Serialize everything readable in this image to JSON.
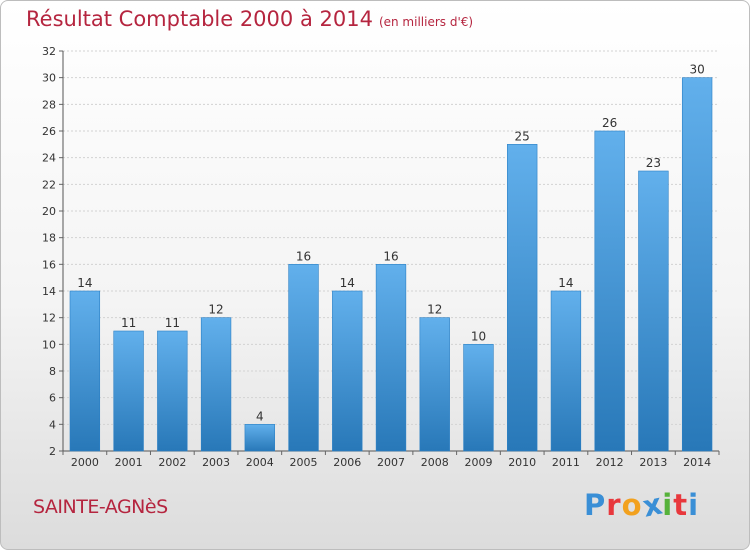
{
  "header": {
    "title": "Résultat Comptable 2000 à 2014",
    "subtitle": "(en milliers d'€)"
  },
  "footer": {
    "place": "SAINTE-AGNèS",
    "brand_letters": [
      "P",
      "r",
      "o",
      "x",
      "i",
      "t",
      "i"
    ],
    "brand_colors": [
      "#3a8fd6",
      "#e8383d",
      "#f2a11e",
      "#3a8fd6",
      "#56b23b",
      "#e8383d",
      "#3a8fd6"
    ]
  },
  "chart_data": {
    "type": "bar",
    "categories": [
      "2000",
      "2001",
      "2002",
      "2003",
      "2004",
      "2005",
      "2006",
      "2007",
      "2008",
      "2009",
      "2010",
      "2011",
      "2012",
      "2013",
      "2014"
    ],
    "values": [
      14,
      11,
      11,
      12,
      4,
      16,
      14,
      16,
      12,
      10,
      25,
      14,
      26,
      23,
      30
    ],
    "ylim": [
      2,
      32
    ],
    "yticks": [
      2,
      4,
      6,
      8,
      10,
      12,
      14,
      16,
      18,
      20,
      22,
      24,
      26,
      28,
      30,
      32
    ],
    "grid": true,
    "bar_color": "#3a95dc",
    "bar_color_light": "#62b0ec",
    "bar_color_dark": "#2878b8"
  }
}
